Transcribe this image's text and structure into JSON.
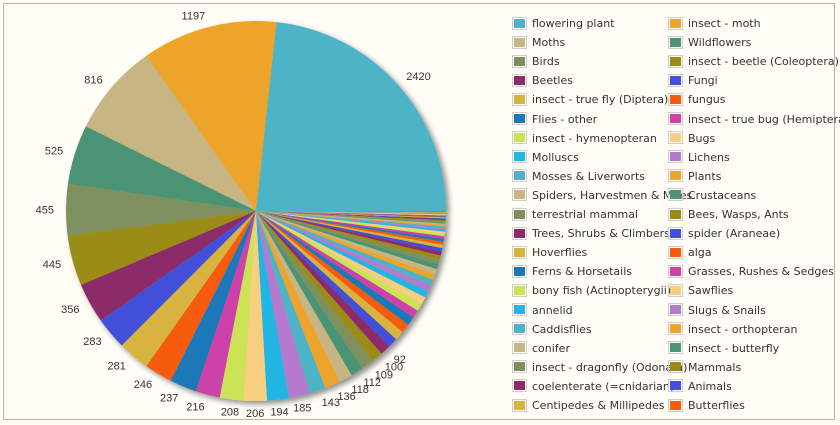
{
  "chart_data": {
    "type": "pie",
    "title": "",
    "labels_shown_max_index": 22,
    "slices": [
      {
        "name": "flowering plant",
        "value": 2420,
        "color": "#4eb3c6"
      },
      {
        "name": "insect - moth",
        "value": 1197,
        "color": "#eda42c"
      },
      {
        "name": "Moths",
        "value": 816,
        "color": "#c8b584"
      },
      {
        "name": "Wildflowers",
        "value": 525,
        "color": "#4b9374"
      },
      {
        "name": "Birds",
        "value": 455,
        "color": "#7f9060"
      },
      {
        "name": "insect - beetle (Coleoptera)",
        "value": 445,
        "color": "#9a8c12"
      },
      {
        "name": "Beetles",
        "value": 356,
        "color": "#8c2b6b"
      },
      {
        "name": "Fungi",
        "value": 283,
        "color": "#4350d8"
      },
      {
        "name": "insect - true fly (Diptera)",
        "value": 281,
        "color": "#d8b33d"
      },
      {
        "name": "fungus",
        "value": 246,
        "color": "#f75c0c"
      },
      {
        "name": "Flies - other",
        "value": 237,
        "color": "#1a78b8"
      },
      {
        "name": "insect - true bug (Hemiptera)",
        "value": 216,
        "color": "#cc42a8"
      },
      {
        "name": "insect - hymenopteran",
        "value": 208,
        "color": "#cde356"
      },
      {
        "name": "Bugs",
        "value": 206,
        "color": "#f8cf80"
      },
      {
        "name": "Molluscs",
        "value": 194,
        "color": "#24b5e3"
      },
      {
        "name": "Lichens",
        "value": 185,
        "color": "#b57ace"
      },
      {
        "name": "Mosses & Liverworts",
        "value": 143,
        "color": "#4eb3c6"
      },
      {
        "name": "Plants",
        "value": 136,
        "color": "#eda42c"
      },
      {
        "name": "Spiders, Harvestmen & Mites",
        "value": 118,
        "color": "#c8b584"
      },
      {
        "name": "Crustaceans",
        "value": 112,
        "color": "#4b9374"
      },
      {
        "name": "terrestrial mammal",
        "value": 109,
        "color": "#7f9060"
      },
      {
        "name": "Bees, Wasps, Ants",
        "value": 100,
        "color": "#9a8c12"
      },
      {
        "name": "Trees, Shrubs & Climbers",
        "value": 92,
        "color": "#8c2b6b"
      },
      {
        "name": "spider (Araneae)",
        "value": 88,
        "color": "#4350d8"
      },
      {
        "name": "Hoverflies",
        "value": 84,
        "color": "#d8b33d"
      },
      {
        "name": "alga",
        "value": 80,
        "color": "#f75c0c"
      },
      {
        "name": "Ferns & Horsetails",
        "value": 76,
        "color": "#1a78b8"
      },
      {
        "name": "Grasses, Rushes & Sedges",
        "value": 72,
        "color": "#cc42a8"
      },
      {
        "name": "bony fish (Actinopterygii)",
        "value": 68,
        "color": "#cde356"
      },
      {
        "name": "Sawflies",
        "value": 64,
        "color": "#f8cf80"
      },
      {
        "name": "annelid",
        "value": 60,
        "color": "#24b5e3"
      },
      {
        "name": "Slugs & Snails",
        "value": 56,
        "color": "#b57ace"
      },
      {
        "name": "Caddisflies",
        "value": 53,
        "color": "#4eb3c6"
      },
      {
        "name": "insect - orthopteran",
        "value": 50,
        "color": "#eda42c"
      },
      {
        "name": "conifer",
        "value": 47,
        "color": "#c8b584"
      },
      {
        "name": "insect - butterfly",
        "value": 44,
        "color": "#4b9374"
      },
      {
        "name": "insect - dragonfly (Odonata)",
        "value": 41,
        "color": "#7f9060"
      },
      {
        "name": "Mammals",
        "value": 38,
        "color": "#9a8c12"
      },
      {
        "name": "coelenterate (=cnidarian)",
        "value": 35,
        "color": "#8c2b6b"
      },
      {
        "name": "Animals",
        "value": 32,
        "color": "#4350d8"
      },
      {
        "name": "Centipedes & Millipedes",
        "value": 29,
        "color": "#d8b33d"
      },
      {
        "name": "Butterflies",
        "value": 27,
        "color": "#f75c0c"
      },
      {
        "name": "",
        "value": 25,
        "color": "#1a78b8"
      },
      {
        "name": "",
        "value": 23,
        "color": "#cc42a8"
      },
      {
        "name": "",
        "value": 21,
        "color": "#cde356"
      },
      {
        "name": "",
        "value": 19,
        "color": "#f8cf80"
      },
      {
        "name": "",
        "value": 17,
        "color": "#24b5e3"
      },
      {
        "name": "",
        "value": 15,
        "color": "#b57ace"
      },
      {
        "name": "",
        "value": 14,
        "color": "#4eb3c6"
      },
      {
        "name": "",
        "value": 13,
        "color": "#eda42c"
      },
      {
        "name": "",
        "value": 12,
        "color": "#c8b584"
      },
      {
        "name": "",
        "value": 11,
        "color": "#4b9374"
      },
      {
        "name": "",
        "value": 10,
        "color": "#7f9060"
      },
      {
        "name": "",
        "value": 9,
        "color": "#9a8c12"
      },
      {
        "name": "",
        "value": 8,
        "color": "#8c2b6b"
      },
      {
        "name": "",
        "value": 8,
        "color": "#4350d8"
      },
      {
        "name": "",
        "value": 7,
        "color": "#d8b33d"
      },
      {
        "name": "",
        "value": 7,
        "color": "#f75c0c"
      },
      {
        "name": "",
        "value": 6,
        "color": "#1a78b8"
      },
      {
        "name": "",
        "value": 6,
        "color": "#cc42a8"
      },
      {
        "name": "",
        "value": 5,
        "color": "#cde356"
      },
      {
        "name": "",
        "value": 5,
        "color": "#f8cf80"
      },
      {
        "name": "",
        "value": 4,
        "color": "#24b5e3"
      },
      {
        "name": "",
        "value": 4,
        "color": "#b57ace"
      },
      {
        "name": "",
        "value": 3,
        "color": "#4eb3c6"
      },
      {
        "name": "",
        "value": 3,
        "color": "#eda42c"
      },
      {
        "name": "",
        "value": 3,
        "color": "#c8b584"
      },
      {
        "name": "",
        "value": 2,
        "color": "#4b9374"
      },
      {
        "name": "",
        "value": 2,
        "color": "#7f9060"
      },
      {
        "name": "",
        "value": 2,
        "color": "#9a8c12"
      },
      {
        "name": "",
        "value": 2,
        "color": "#8c2b6b"
      },
      {
        "name": "",
        "value": 1,
        "color": "#4350d8"
      },
      {
        "name": "",
        "value": 1,
        "color": "#d8b33d"
      },
      {
        "name": "",
        "value": 1,
        "color": "#f75c0c"
      }
    ],
    "legend": {
      "placement": "right",
      "columns": 2,
      "items_shown": 42
    }
  }
}
